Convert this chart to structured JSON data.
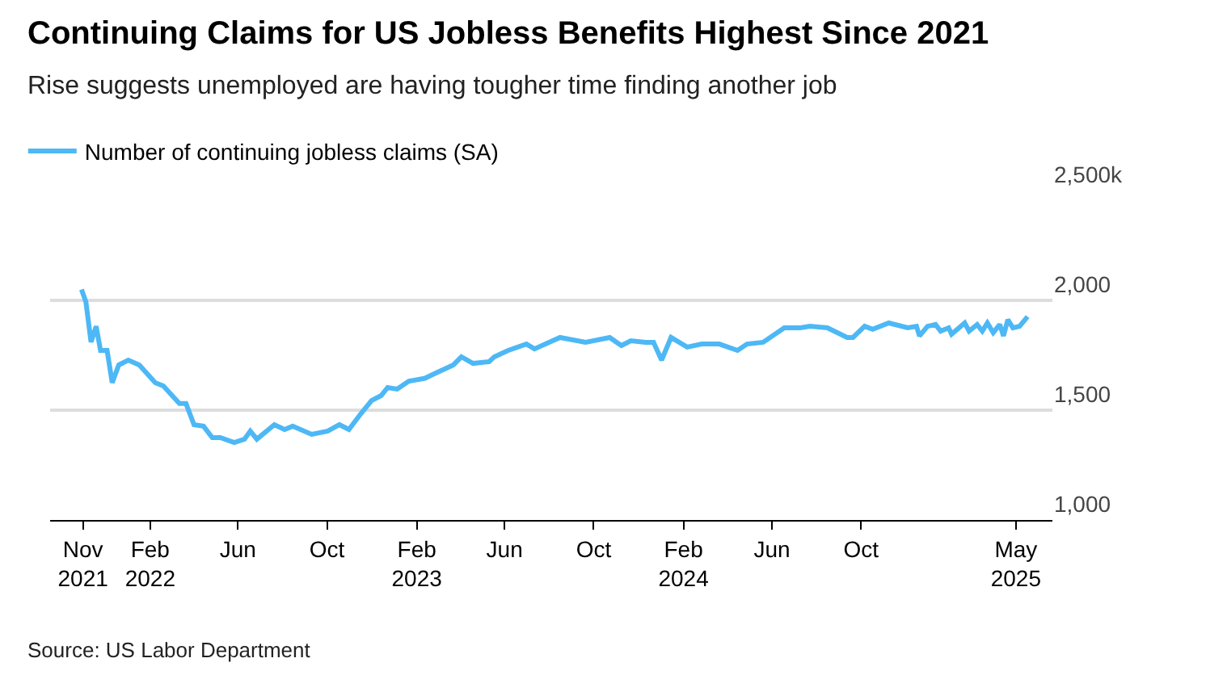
{
  "chart_data": {
    "type": "line",
    "title": "Continuing Claims for US Jobless Benefits Highest Since 2021",
    "subtitle": "Rise suggests unemployed are having tougher time finding another job",
    "annotations": [
      "Source: US Labor Department"
    ],
    "x": [
      "2021-10-30",
      "2021-11-05",
      "2021-11-12",
      "2021-11-19",
      "2021-11-25",
      "2021-12-04",
      "2021-12-11",
      "2021-12-20",
      "2022-01-02",
      "2022-01-17",
      "2022-02-08",
      "2022-02-19",
      "2022-03-13",
      "2022-03-22",
      "2022-04-02",
      "2022-04-15",
      "2022-04-27",
      "2022-05-08",
      "2022-05-27",
      "2022-06-10",
      "2022-06-18",
      "2022-06-27",
      "2022-07-21",
      "2022-08-04",
      "2022-08-15",
      "2022-09-10",
      "2022-10-02",
      "2022-10-18",
      "2022-10-31",
      "2022-11-15",
      "2022-12-01",
      "2022-12-14",
      "2022-12-23",
      "2023-01-05",
      "2023-01-21",
      "2023-02-12",
      "2023-02-27",
      "2023-03-23",
      "2023-04-03",
      "2023-04-19",
      "2023-05-11",
      "2023-05-18",
      "2023-06-06",
      "2023-07-01",
      "2023-07-12",
      "2023-08-01",
      "2023-08-16",
      "2023-09-20",
      "2023-10-23",
      "2023-11-08",
      "2023-11-21",
      "2023-12-11",
      "2023-12-22",
      "2024-01-02",
      "2024-01-15",
      "2024-02-06",
      "2024-02-26",
      "2024-03-21",
      "2024-04-15",
      "2024-04-28",
      "2024-05-20",
      "2024-06-18",
      "2024-07-10",
      "2024-07-23",
      "2024-08-16",
      "2024-09-12",
      "2024-09-20",
      "2024-10-06",
      "2024-10-17",
      "2024-11-08",
      "2024-12-04",
      "2024-12-16",
      "2024-12-20",
      "2024-12-31",
      "2025-01-11",
      "2025-01-18",
      "2025-01-29",
      "2025-02-02",
      "2025-02-20",
      "2025-02-26",
      "2025-03-09",
      "2025-03-16",
      "2025-03-23",
      "2025-03-31",
      "2025-04-09",
      "2025-04-14",
      "2025-04-20",
      "2025-04-27",
      "2025-05-06",
      "2025-05-17"
    ],
    "series": [
      {
        "name": "Number of continuing jobless claims (SA)",
        "color": "#4db8f5",
        "values": [
          2050,
          1993,
          1810,
          1882,
          1772,
          1772,
          1625,
          1706,
          1728,
          1706,
          1625,
          1610,
          1530,
          1530,
          1434,
          1427,
          1375,
          1375,
          1353,
          1368,
          1405,
          1368,
          1434,
          1412,
          1427,
          1390,
          1405,
          1434,
          1412,
          1478,
          1544,
          1566,
          1603,
          1596,
          1632,
          1645,
          1669,
          1706,
          1743,
          1713,
          1721,
          1743,
          1772,
          1801,
          1779,
          1809,
          1831,
          1809,
          1831,
          1794,
          1816,
          1809,
          1809,
          1728,
          1831,
          1787,
          1801,
          1801,
          1772,
          1801,
          1809,
          1875,
          1875,
          1882,
          1875,
          1831,
          1831,
          1882,
          1868,
          1897,
          1875,
          1882,
          1838,
          1882,
          1890,
          1860,
          1875,
          1846,
          1897,
          1860,
          1890,
          1860,
          1897,
          1853,
          1890,
          1838,
          1912,
          1875,
          1882,
          1926
        ]
      }
    ],
    "xlim": [
      "2021-09-17",
      "2025-06-20"
    ],
    "xticks": [
      {
        "value": "2021-11-01",
        "label": "Nov\n2021"
      },
      {
        "value": "2022-02-01",
        "label": "Feb\n2022"
      },
      {
        "value": "2022-06-01",
        "label": "Jun"
      },
      {
        "value": "2022-10-01",
        "label": "Oct"
      },
      {
        "value": "2023-02-01",
        "label": "Feb\n2023"
      },
      {
        "value": "2023-06-01",
        "label": "Jun"
      },
      {
        "value": "2023-10-01",
        "label": "Oct"
      },
      {
        "value": "2024-02-01",
        "label": "Feb\n2024"
      },
      {
        "value": "2024-06-01",
        "label": "Jun"
      },
      {
        "value": "2024-10-01",
        "label": "Oct"
      },
      {
        "value": "2025-05-01",
        "label": "May\n2025"
      }
    ],
    "ylim": [
      1000,
      2500
    ],
    "yticks": [
      {
        "value": 1000,
        "label": "1,000"
      },
      {
        "value": 1500,
        "label": "1,500"
      },
      {
        "value": 2000,
        "label": "2,000"
      },
      {
        "value": 2500,
        "label": "2,500k"
      }
    ],
    "grid": "y",
    "legend": "top left",
    "marker": "none",
    "line_style": "solid"
  }
}
